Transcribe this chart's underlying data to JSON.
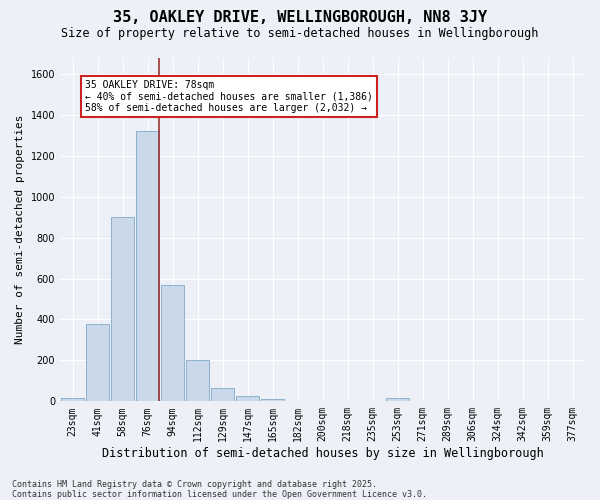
{
  "title": "35, OAKLEY DRIVE, WELLINGBOROUGH, NN8 3JY",
  "subtitle": "Size of property relative to semi-detached houses in Wellingborough",
  "xlabel": "Distribution of semi-detached houses by size in Wellingborough",
  "ylabel": "Number of semi-detached properties",
  "categories": [
    "23sqm",
    "41sqm",
    "58sqm",
    "76sqm",
    "94sqm",
    "112sqm",
    "129sqm",
    "147sqm",
    "165sqm",
    "182sqm",
    "200sqm",
    "218sqm",
    "235sqm",
    "253sqm",
    "271sqm",
    "289sqm",
    "306sqm",
    "324sqm",
    "342sqm",
    "359sqm",
    "377sqm"
  ],
  "values": [
    18,
    380,
    900,
    1320,
    570,
    200,
    65,
    28,
    12,
    0,
    0,
    0,
    0,
    15,
    0,
    0,
    0,
    0,
    0,
    0,
    0
  ],
  "bar_color": "#c9d9ea",
  "bar_edge_color": "#8cb0cc",
  "subject_bar_index": 3,
  "vline_x": 3.45,
  "vline_color": "#993333",
  "annotation_line1": "35 OAKLEY DRIVE: 78sqm",
  "annotation_line2": "← 40% of semi-detached houses are smaller (1,386)",
  "annotation_line3": "58% of semi-detached houses are larger (2,032) →",
  "annotation_box_facecolor": "#ffffff",
  "annotation_box_edgecolor": "#cc2222",
  "ylim_max": 1680,
  "yticks": [
    0,
    200,
    400,
    600,
    800,
    1000,
    1200,
    1400,
    1600
  ],
  "background_color": "#edf1f7",
  "grid_color": "#ffffff",
  "footer_line1": "Contains HM Land Registry data © Crown copyright and database right 2025.",
  "footer_line2": "Contains public sector information licensed under the Open Government Licence v3.0.",
  "title_fontsize": 11,
  "subtitle_fontsize": 8.5,
  "ylabel_fontsize": 8,
  "xlabel_fontsize": 8.5,
  "tick_fontsize": 7,
  "annotation_fontsize": 7,
  "footer_fontsize": 6
}
